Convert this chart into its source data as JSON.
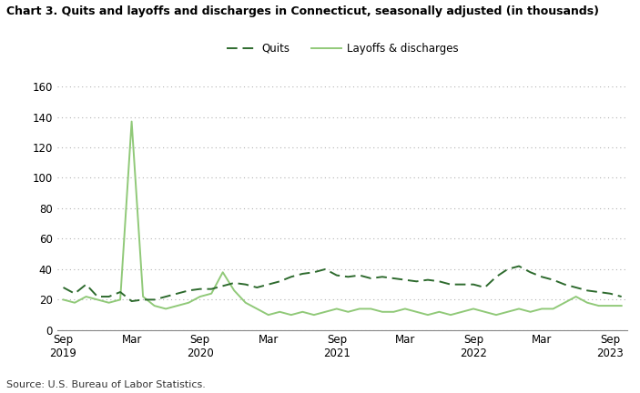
{
  "title": "Chart 3. Quits and layoffs and discharges in Connecticut, seasonally adjusted (in thousands)",
  "source": "Source: U.S. Bureau of Labor Statistics.",
  "legend_quits": "Quits",
  "legend_layoffs": "Layoffs & discharges",
  "quits_color": "#2d6a2d",
  "layoffs_color": "#90c978",
  "background_color": "#ffffff",
  "grid_color": "#b0b0b0",
  "ylim": [
    0,
    160
  ],
  "yticks": [
    0,
    20,
    40,
    60,
    80,
    100,
    120,
    140,
    160
  ],
  "tick_positions": [
    0,
    6,
    12,
    18,
    24,
    30,
    36,
    42,
    48
  ],
  "tick_labels": [
    "Sep\n2019",
    "Mar",
    "Sep\n2020",
    "Mar",
    "Sep\n2021",
    "Mar",
    "Sep\n2022",
    "Mar",
    "Sep\n2023"
  ],
  "quits_data": [
    28,
    24,
    30,
    22,
    22,
    25,
    19,
    20,
    20,
    22,
    24,
    26,
    27,
    27,
    29,
    31,
    30,
    28,
    30,
    32,
    35,
    37,
    38,
    40,
    36,
    35,
    36,
    34,
    35,
    34,
    33,
    32,
    33,
    32,
    30,
    30,
    30,
    28,
    35,
    40,
    42,
    38,
    35,
    33,
    30,
    28,
    26,
    25,
    24,
    22
  ],
  "layoffs_data": [
    20,
    18,
    22,
    20,
    18,
    20,
    137,
    22,
    16,
    14,
    16,
    18,
    22,
    24,
    38,
    26,
    18,
    14,
    10,
    12,
    10,
    12,
    10,
    12,
    14,
    12,
    14,
    14,
    12,
    12,
    14,
    12,
    10,
    12,
    10,
    12,
    14,
    12,
    10,
    12,
    14,
    12,
    14,
    14,
    18,
    22,
    18,
    16,
    16,
    16
  ]
}
